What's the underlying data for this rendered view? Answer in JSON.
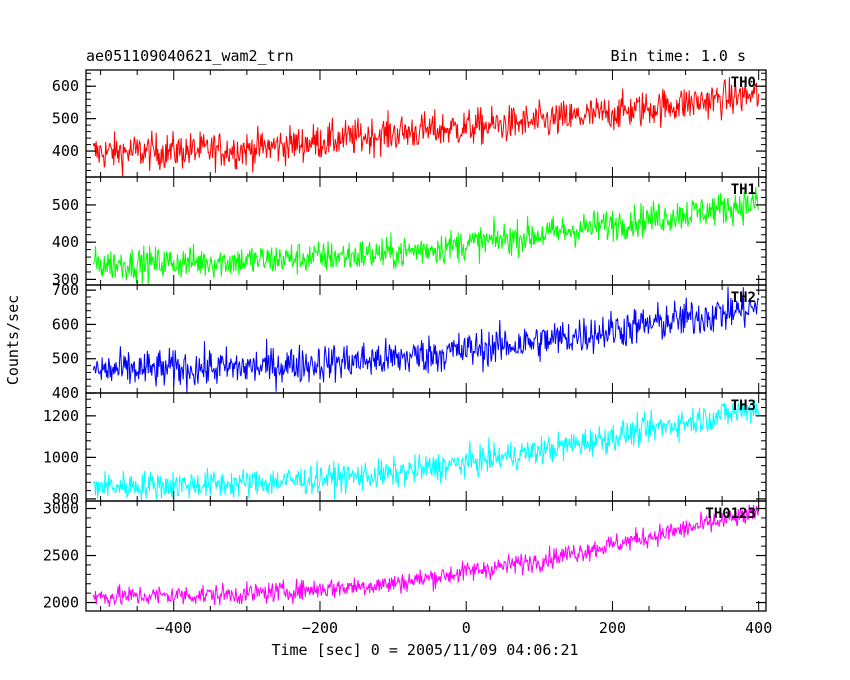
{
  "header": {
    "title": "ae051109040621_wam2_trn",
    "bin_time": "Bin time: 1.0 s"
  },
  "chart_data": {
    "type": "line",
    "xlabel": "Time [sec] 0 = 2005/11/09 04:06:21",
    "ylabel": "Counts/sec",
    "xlim": [
      -520,
      410
    ],
    "x_ticks": [
      -400,
      -200,
      0,
      200,
      400
    ],
    "x_tick_labels": [
      "−400",
      "−200",
      "0",
      "200",
      "400"
    ],
    "x_samples": {
      "start": -510,
      "end": 400,
      "step": 1
    },
    "panels": [
      {
        "name": "TH0",
        "color": "#ff0000",
        "ylim": [
          320,
          650
        ],
        "y_ticks": [
          400,
          500,
          600
        ],
        "trend": [
          [
            -510,
            395
          ],
          [
            -300,
            405
          ],
          [
            -100,
            455
          ],
          [
            100,
            490
          ],
          [
            400,
            575
          ]
        ],
        "noise": 28
      },
      {
        "name": "TH1",
        "color": "#00ff00",
        "ylim": [
          285,
          575
        ],
        "y_ticks": [
          300,
          400,
          500
        ],
        "trend": [
          [
            -510,
            340
          ],
          [
            -300,
            350
          ],
          [
            -100,
            370
          ],
          [
            100,
            420
          ],
          [
            400,
            505
          ]
        ],
        "noise": 22
      },
      {
        "name": "TH2",
        "color": "#0000ff",
        "ylim": [
          400,
          715
        ],
        "y_ticks": [
          400,
          500,
          600,
          700
        ],
        "trend": [
          [
            -510,
            465
          ],
          [
            -300,
            475
          ],
          [
            -100,
            500
          ],
          [
            100,
            550
          ],
          [
            400,
            650
          ]
        ],
        "noise": 28
      },
      {
        "name": "TH3",
        "color": "#00ffff",
        "ylim": [
          790,
          1310
        ],
        "y_ticks": [
          800,
          1000,
          1200
        ],
        "trend": [
          [
            -510,
            860
          ],
          [
            -300,
            875
          ],
          [
            -100,
            920
          ],
          [
            100,
            1030
          ],
          [
            400,
            1240
          ]
        ],
        "noise": 35
      },
      {
        "name": "TH0123",
        "color": "#ff00ff",
        "ylim": [
          1910,
          3080
        ],
        "y_ticks": [
          2000,
          2500,
          3000
        ],
        "trend": [
          [
            -510,
            2060
          ],
          [
            -300,
            2090
          ],
          [
            -100,
            2200
          ],
          [
            100,
            2450
          ],
          [
            400,
            2950
          ]
        ],
        "noise": 55
      }
    ]
  }
}
